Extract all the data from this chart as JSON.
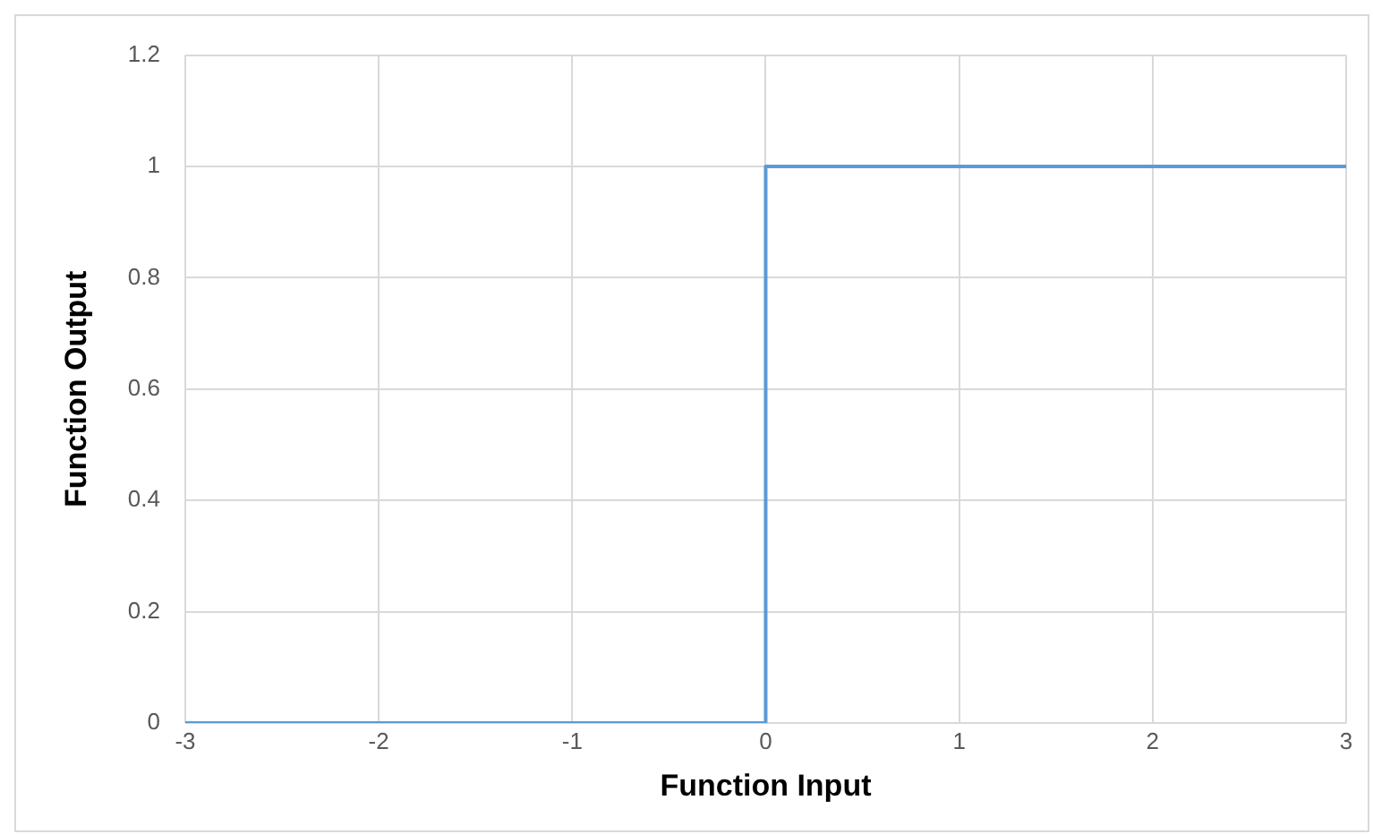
{
  "chart_data": {
    "type": "line",
    "xlabel": "Function Input",
    "ylabel": "Function Output",
    "series": [
      {
        "color": "#5b9bd5",
        "x": [
          -3,
          0,
          0,
          3
        ],
        "values": [
          0,
          0,
          1,
          1
        ]
      }
    ],
    "xlim": [
      -3,
      3
    ],
    "xticks": [
      -3,
      -2,
      -1,
      0,
      1,
      2,
      3
    ],
    "ylim": [
      0,
      1.2
    ],
    "yticks": [
      0,
      0.2,
      0.4,
      0.6,
      0.8,
      1,
      1.2
    ],
    "grid": true,
    "legend": false,
    "marker": "none",
    "line_style": "solid"
  }
}
